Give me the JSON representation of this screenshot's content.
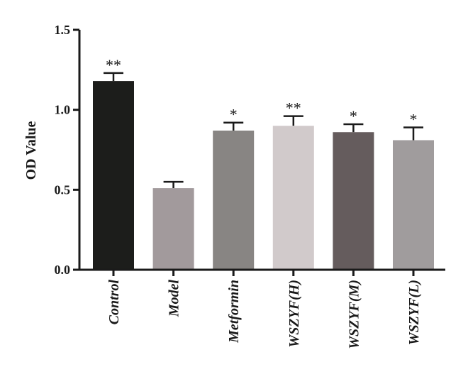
{
  "chart_data": {
    "type": "bar",
    "ylabel": "OD Value",
    "xlabel": "",
    "ylim": [
      0,
      1.5
    ],
    "yticks": [
      "0.0",
      "0.5",
      "1.0",
      "1.5"
    ],
    "categories": [
      "Control",
      "Model",
      "Metformin",
      "WSZYF(H)",
      "WSZYF(M)",
      "WSZYF(L)"
    ],
    "values": [
      1.18,
      0.51,
      0.87,
      0.9,
      0.86,
      0.81
    ],
    "errors": [
      0.05,
      0.04,
      0.05,
      0.06,
      0.05,
      0.08
    ],
    "significance": [
      "**",
      "",
      "*",
      "**",
      "*",
      "*"
    ],
    "colors": [
      "#1c1d1b",
      "#a29a9c",
      "#888583",
      "#d1cacb",
      "#655c5d",
      "#a09c9d"
    ],
    "grid": false
  }
}
